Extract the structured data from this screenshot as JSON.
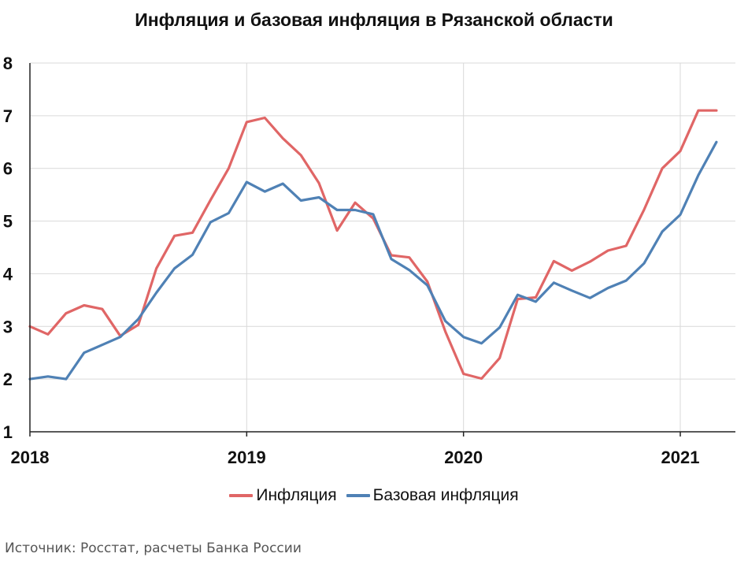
{
  "chart_data": {
    "type": "line",
    "title": "Инфляция и базовая инфляция в Рязанской области",
    "xlabel": "",
    "ylabel": "",
    "ylim": [
      1,
      8
    ],
    "yticks": [
      "1",
      "2",
      "3",
      "4",
      "5",
      "6",
      "7",
      "8"
    ],
    "xticks": [
      "2018",
      "2019",
      "2020",
      "2021"
    ],
    "x_start": "2018-01",
    "x": [
      "2018-01",
      "2018-02",
      "2018-03",
      "2018-04",
      "2018-05",
      "2018-06",
      "2018-07",
      "2018-08",
      "2018-09",
      "2018-10",
      "2018-11",
      "2018-12",
      "2019-01",
      "2019-02",
      "2019-03",
      "2019-04",
      "2019-05",
      "2019-06",
      "2019-07",
      "2019-08",
      "2019-09",
      "2019-10",
      "2019-11",
      "2019-12",
      "2020-01",
      "2020-02",
      "2020-03",
      "2020-04",
      "2020-05",
      "2020-06",
      "2020-07",
      "2020-08",
      "2020-09",
      "2020-10",
      "2020-11",
      "2020-12",
      "2021-01",
      "2021-02",
      "2021-03"
    ],
    "series": [
      {
        "name": "Инфляция",
        "color": "#e06666",
        "values": [
          3.0,
          2.85,
          3.25,
          3.4,
          3.33,
          2.82,
          3.03,
          4.1,
          4.72,
          4.78,
          5.4,
          6.0,
          6.88,
          6.96,
          6.57,
          6.25,
          5.72,
          4.82,
          5.35,
          5.05,
          4.35,
          4.31,
          3.85,
          2.9,
          2.1,
          2.01,
          2.4,
          3.52,
          3.55,
          4.24,
          4.06,
          4.23,
          4.44,
          4.53,
          5.22,
          6.0,
          6.33,
          7.1,
          7.1
        ]
      },
      {
        "name": "Базовая инфляция",
        "color": "#4f81b5",
        "values": [
          2.0,
          2.05,
          2.0,
          2.5,
          2.65,
          2.8,
          3.14,
          3.64,
          4.1,
          4.36,
          4.98,
          5.15,
          5.74,
          5.56,
          5.71,
          5.39,
          5.45,
          5.21,
          5.21,
          5.13,
          4.28,
          4.07,
          3.78,
          3.1,
          2.8,
          2.68,
          2.98,
          3.6,
          3.47,
          3.83,
          3.68,
          3.54,
          3.73,
          3.87,
          4.2,
          4.8,
          5.12,
          5.87,
          6.5
        ]
      }
    ],
    "legend_position": "bottom-center",
    "grid": true
  },
  "source_text": "Источник: Росстат, расчеты Банка России"
}
